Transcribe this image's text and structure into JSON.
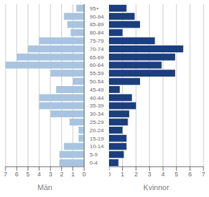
{
  "chart_data": [
    {
      "type": "bar",
      "orientation": "horizontal",
      "xlabel": "Män",
      "categories": [
        "0-4",
        "5-9",
        "10-14",
        "15-19",
        "20-24",
        "25-29",
        "30-34",
        "35-39",
        "40-44",
        "45-49",
        "50-54",
        "55-59",
        "60-64",
        "65-69",
        "70-74",
        "75-79",
        "80-84",
        "85-89",
        "90-94",
        "95+"
      ],
      "values": [
        2.2,
        2.2,
        1.8,
        0.5,
        0.5,
        1.3,
        3.0,
        4.0,
        4.0,
        2.5,
        1.0,
        3.0,
        7.0,
        6.0,
        5.0,
        4.0,
        1.2,
        1.5,
        1.8,
        0.7
      ],
      "color": "#a8c4e0",
      "xlim": [
        7,
        0
      ],
      "xticks": [
        0,
        1,
        2,
        3,
        4,
        5,
        6,
        7
      ],
      "grid": true
    },
    {
      "type": "bar",
      "orientation": "horizontal",
      "xlabel": "Kvinnor",
      "categories": [
        "0-4",
        "5-9",
        "10-14",
        "15-19",
        "20-24",
        "25-29",
        "30-34",
        "35-39",
        "40-44",
        "45-49",
        "50-54",
        "55-59",
        "60-64",
        "65-69",
        "70-74",
        "75-79",
        "80-84",
        "85-89",
        "90-94",
        "95+"
      ],
      "values": [
        0.7,
        1.1,
        1.3,
        1.3,
        1.0,
        1.4,
        1.5,
        2.0,
        1.7,
        0.8,
        2.3,
        4.9,
        3.9,
        4.9,
        5.5,
        3.4,
        1.0,
        2.3,
        1.9,
        1.3
      ],
      "color": "#1b3e7e",
      "xlim": [
        0,
        7
      ],
      "xticks": [
        0,
        1,
        2,
        3,
        4,
        5,
        6,
        7
      ],
      "grid": true
    }
  ]
}
